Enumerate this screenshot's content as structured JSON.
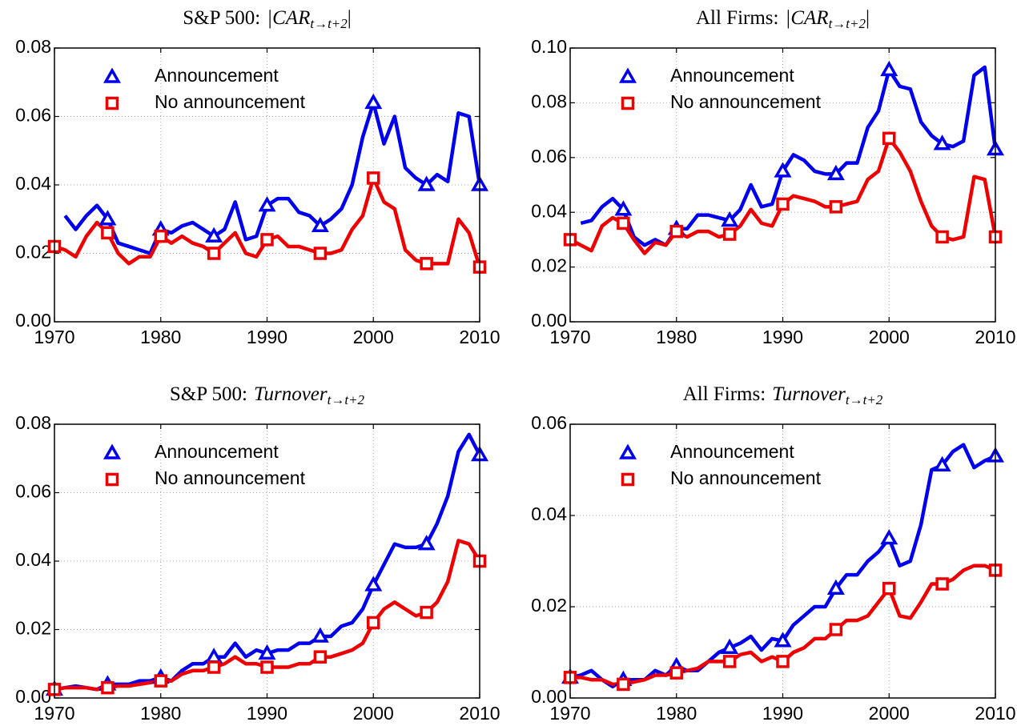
{
  "chart_data": [
    {
      "type": "line",
      "title": "S&P 500:",
      "title_math": "|CAR",
      "title_sub": "t→t+2",
      "title_close": "|",
      "x": [
        1970,
        1971,
        1972,
        1973,
        1974,
        1975,
        1976,
        1977,
        1978,
        1979,
        1980,
        1981,
        1982,
        1983,
        1984,
        1985,
        1986,
        1987,
        1988,
        1989,
        1990,
        1991,
        1992,
        1993,
        1994,
        1995,
        1996,
        1997,
        1998,
        1999,
        2000,
        2001,
        2002,
        2003,
        2004,
        2005,
        2006,
        2007,
        2008,
        2009,
        2010
      ],
      "xlim": [
        1970,
        2010
      ],
      "xticks": [
        1970,
        1980,
        1990,
        2000,
        2010
      ],
      "ylim": [
        0,
        0.08
      ],
      "yticks": [
        {
          "value": 0,
          "label": "0.00"
        },
        {
          "value": 0.02,
          "label": "0.02"
        },
        {
          "value": 0.04,
          "label": "0.04"
        },
        {
          "value": 0.06,
          "label": "0.06"
        },
        {
          "value": 0.08,
          "label": "0.08"
        }
      ],
      "grid": true,
      "legend": "upper left",
      "markevery": 5,
      "series": [
        {
          "name": "Announcement",
          "color": "#0000ee",
          "marker": "triangle",
          "values": [
            null,
            0.031,
            0.027,
            0.031,
            0.034,
            0.03,
            0.023,
            0.022,
            0.021,
            0.02,
            0.027,
            0.026,
            0.028,
            0.029,
            0.027,
            0.025,
            0.027,
            0.035,
            0.024,
            0.025,
            0.034,
            0.036,
            0.036,
            0.032,
            0.031,
            0.028,
            0.03,
            0.033,
            0.04,
            0.054,
            0.064,
            0.052,
            0.06,
            0.045,
            0.042,
            0.04,
            0.043,
            0.041,
            0.061,
            0.06,
            0.04
          ]
        },
        {
          "name": "No announcement",
          "color": "#ee0000",
          "marker": "square",
          "values": [
            0.022,
            0.021,
            0.019,
            0.025,
            0.029,
            0.026,
            0.02,
            0.017,
            0.019,
            0.019,
            0.025,
            0.023,
            0.025,
            0.023,
            0.022,
            0.02,
            0.023,
            0.026,
            0.02,
            0.019,
            0.024,
            0.025,
            0.022,
            0.022,
            0.021,
            0.02,
            0.02,
            0.021,
            0.027,
            0.031,
            0.042,
            0.035,
            0.033,
            0.021,
            0.018,
            0.017,
            0.017,
            0.017,
            0.03,
            0.026,
            0.016
          ]
        }
      ]
    },
    {
      "type": "line",
      "title": "All Firms:",
      "title_math": "|CAR",
      "title_sub": "t→t+2",
      "title_close": "|",
      "x": [
        1970,
        1971,
        1972,
        1973,
        1974,
        1975,
        1976,
        1977,
        1978,
        1979,
        1980,
        1981,
        1982,
        1983,
        1984,
        1985,
        1986,
        1987,
        1988,
        1989,
        1990,
        1991,
        1992,
        1993,
        1994,
        1995,
        1996,
        1997,
        1998,
        1999,
        2000,
        2001,
        2002,
        2003,
        2004,
        2005,
        2006,
        2007,
        2008,
        2009,
        2010
      ],
      "xlim": [
        1970,
        2010
      ],
      "xticks": [
        1970,
        1980,
        1990,
        2000,
        2010
      ],
      "ylim": [
        0,
        0.1
      ],
      "yticks": [
        {
          "value": 0,
          "label": "0.00"
        },
        {
          "value": 0.02,
          "label": "0.02"
        },
        {
          "value": 0.04,
          "label": "0.04"
        },
        {
          "value": 0.06,
          "label": "0.06"
        },
        {
          "value": 0.08,
          "label": "0.08"
        },
        {
          "value": 0.1,
          "label": "0.10"
        }
      ],
      "grid": true,
      "legend": "upper left",
      "markevery": 5,
      "series": [
        {
          "name": "Announcement",
          "color": "#0000ee",
          "marker": "triangle",
          "values": [
            null,
            0.036,
            0.037,
            0.042,
            0.045,
            0.041,
            0.031,
            0.028,
            0.03,
            0.028,
            0.034,
            0.034,
            0.039,
            0.039,
            0.038,
            0.037,
            0.041,
            0.05,
            0.042,
            0.043,
            0.055,
            0.061,
            0.059,
            0.055,
            0.054,
            0.054,
            0.058,
            0.058,
            0.071,
            0.077,
            0.092,
            0.086,
            0.085,
            0.073,
            0.068,
            0.065,
            0.064,
            0.066,
            0.09,
            0.093,
            0.063
          ]
        },
        {
          "name": "No announcement",
          "color": "#ee0000",
          "marker": "square",
          "values": [
            0.03,
            0.028,
            0.026,
            0.035,
            0.038,
            0.036,
            0.03,
            0.025,
            0.029,
            0.028,
            0.033,
            0.031,
            0.033,
            0.033,
            0.031,
            0.032,
            0.035,
            0.041,
            0.036,
            0.035,
            0.043,
            0.046,
            0.045,
            0.044,
            0.042,
            0.042,
            0.043,
            0.044,
            0.052,
            0.055,
            0.067,
            0.062,
            0.055,
            0.044,
            0.035,
            0.031,
            0.03,
            0.031,
            0.053,
            0.052,
            0.031
          ]
        }
      ]
    },
    {
      "type": "line",
      "title": "S&P 500:",
      "title_math": "Turnover",
      "title_sub": "t→t+2",
      "x": [
        1970,
        1971,
        1972,
        1973,
        1974,
        1975,
        1976,
        1977,
        1978,
        1979,
        1980,
        1981,
        1982,
        1983,
        1984,
        1985,
        1986,
        1987,
        1988,
        1989,
        1990,
        1991,
        1992,
        1993,
        1994,
        1995,
        1996,
        1997,
        1998,
        1999,
        2000,
        2001,
        2002,
        2003,
        2004,
        2005,
        2006,
        2007,
        2008,
        2009,
        2010
      ],
      "xlim": [
        1970,
        2010
      ],
      "xticks": [
        1970,
        1980,
        1990,
        2000,
        2010
      ],
      "ylim": [
        0,
        0.08
      ],
      "yticks": [
        {
          "value": 0,
          "label": "0.00"
        },
        {
          "value": 0.02,
          "label": "0.02"
        },
        {
          "value": 0.04,
          "label": "0.04"
        },
        {
          "value": 0.06,
          "label": "0.06"
        },
        {
          "value": 0.08,
          "label": "0.08"
        }
      ],
      "grid": true,
      "legend": "upper left",
      "markevery": 5,
      "series": [
        {
          "name": "Announcement",
          "color": "#0000ee",
          "marker": "triangle",
          "values": [
            0.0025,
            0.003,
            0.0035,
            0.003,
            0.0025,
            0.004,
            0.004,
            0.004,
            0.005,
            0.005,
            0.006,
            0.005,
            0.008,
            0.01,
            0.01,
            0.012,
            0.012,
            0.016,
            0.012,
            0.014,
            0.013,
            0.014,
            0.014,
            0.016,
            0.016,
            0.018,
            0.018,
            0.021,
            0.022,
            0.026,
            0.033,
            0.039,
            0.045,
            0.044,
            0.044,
            0.045,
            0.051,
            0.059,
            0.072,
            0.077,
            0.071
          ]
        },
        {
          "name": "No announcement",
          "color": "#ee0000",
          "marker": "square",
          "values": [
            0.0025,
            0.003,
            0.003,
            0.003,
            0.0025,
            0.003,
            0.0035,
            0.0035,
            0.004,
            0.0045,
            0.005,
            0.005,
            0.007,
            0.008,
            0.008,
            0.009,
            0.01,
            0.012,
            0.01,
            0.01,
            0.009,
            0.009,
            0.009,
            0.01,
            0.01,
            0.012,
            0.012,
            0.013,
            0.014,
            0.016,
            0.022,
            0.026,
            0.028,
            0.026,
            0.024,
            0.025,
            0.028,
            0.034,
            0.046,
            0.045,
            0.04
          ]
        }
      ]
    },
    {
      "type": "line",
      "title": "All Firms:",
      "title_math": "Turnover",
      "title_sub": "t→t+2",
      "x": [
        1970,
        1971,
        1972,
        1973,
        1974,
        1975,
        1976,
        1977,
        1978,
        1979,
        1980,
        1981,
        1982,
        1983,
        1984,
        1985,
        1986,
        1987,
        1988,
        1989,
        1990,
        1991,
        1992,
        1993,
        1994,
        1995,
        1996,
        1997,
        1998,
        1999,
        2000,
        2001,
        2002,
        2003,
        2004,
        2005,
        2006,
        2007,
        2008,
        2009,
        2010
      ],
      "xlim": [
        1970,
        2010
      ],
      "xticks": [
        1970,
        1980,
        1990,
        2000,
        2010
      ],
      "ylim": [
        0,
        0.06
      ],
      "yticks": [
        {
          "value": 0,
          "label": "0.00"
        },
        {
          "value": 0.02,
          "label": "0.02"
        },
        {
          "value": 0.04,
          "label": "0.04"
        },
        {
          "value": 0.06,
          "label": "0.06"
        }
      ],
      "grid": true,
      "legend": "upper left",
      "markevery": 5,
      "series": [
        {
          "name": "Announcement",
          "color": "#0000ee",
          "marker": "triangle",
          "values": [
            0.0045,
            0.005,
            0.006,
            0.004,
            0.0025,
            0.004,
            0.004,
            0.004,
            0.006,
            0.005,
            0.007,
            0.006,
            0.006,
            0.008,
            0.01,
            0.011,
            0.012,
            0.0135,
            0.0105,
            0.013,
            0.0125,
            0.016,
            0.018,
            0.02,
            0.02,
            0.024,
            0.027,
            0.027,
            0.03,
            0.032,
            0.035,
            0.029,
            0.03,
            0.038,
            0.05,
            0.051,
            0.054,
            0.0555,
            0.0505,
            0.052,
            0.053
          ]
        },
        {
          "name": "No announcement",
          "color": "#ee0000",
          "marker": "square",
          "values": [
            0.0045,
            0.0045,
            0.004,
            0.004,
            0.003,
            0.003,
            0.0035,
            0.004,
            0.005,
            0.005,
            0.0055,
            0.006,
            0.0065,
            0.008,
            0.008,
            0.008,
            0.0095,
            0.01,
            0.008,
            0.009,
            0.008,
            0.01,
            0.011,
            0.013,
            0.013,
            0.015,
            0.017,
            0.017,
            0.018,
            0.021,
            0.024,
            0.018,
            0.0175,
            0.021,
            0.025,
            0.025,
            0.026,
            0.028,
            0.029,
            0.029,
            0.028
          ]
        }
      ]
    }
  ]
}
